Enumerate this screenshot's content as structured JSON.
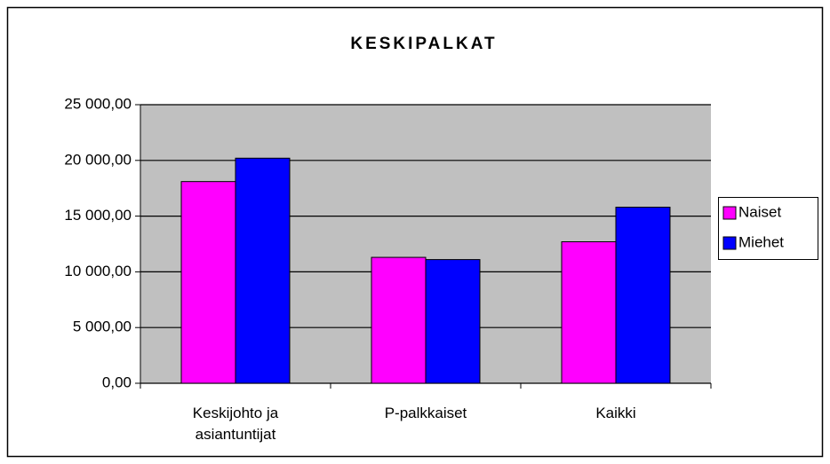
{
  "chart_data": {
    "type": "bar",
    "title": "KESKIPALKAT",
    "categories": [
      "Keskijohto ja asiantuntijat",
      "P-palkkaiset",
      "Kaikki"
    ],
    "series": [
      {
        "name": "Naiset",
        "color": "#ff00ff",
        "values": [
          18100,
          11300,
          12700
        ]
      },
      {
        "name": "Miehet",
        "color": "#0000ff",
        "values": [
          20200,
          11100,
          15800
        ]
      }
    ],
    "ylim": [
      0,
      25000
    ],
    "yticks": [
      {
        "value": 0,
        "label": "0,00"
      },
      {
        "value": 5000,
        "label": "5 000,00"
      },
      {
        "value": 10000,
        "label": "10 000,00"
      },
      {
        "value": 15000,
        "label": "15 000,00"
      },
      {
        "value": 20000,
        "label": "20 000,00"
      },
      {
        "value": 25000,
        "label": "25 000,00"
      }
    ],
    "grid": true,
    "legend": "right"
  }
}
